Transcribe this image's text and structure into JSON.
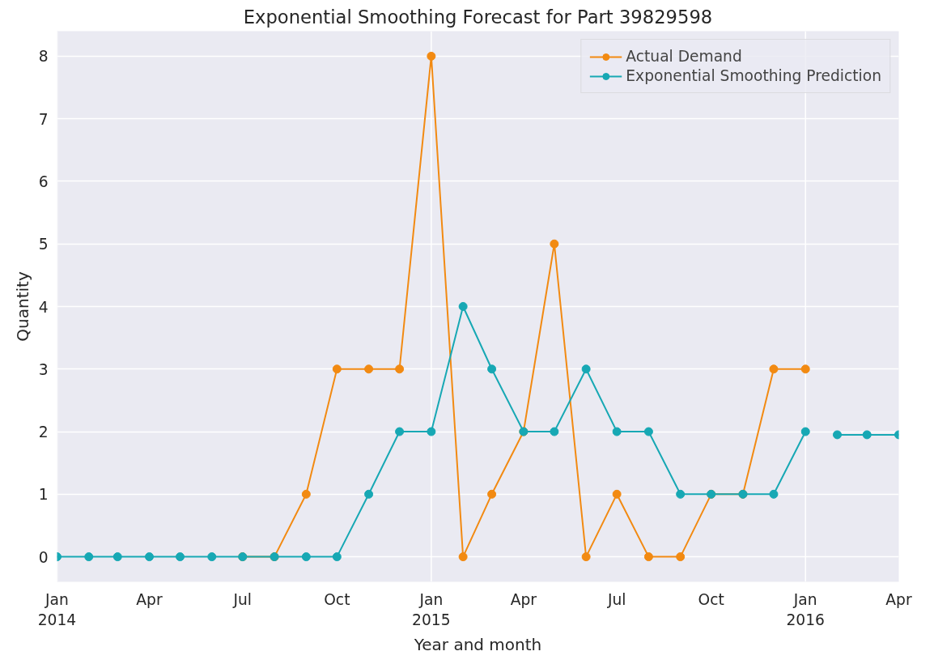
{
  "chart_data": {
    "type": "line",
    "title": "Exponential Smoothing Forecast for Part 39829598",
    "xlabel": "Year and month",
    "ylabel": "Quantity",
    "xlim": [
      "2014-01",
      "2016-04"
    ],
    "xticks": [
      {
        "value": "2014-01",
        "label": "Jan\n2014"
      },
      {
        "value": "2014-04",
        "label": "Apr"
      },
      {
        "value": "2014-07",
        "label": "Jul"
      },
      {
        "value": "2014-10",
        "label": "Oct"
      },
      {
        "value": "2015-01",
        "label": "Jan\n2015"
      },
      {
        "value": "2015-04",
        "label": "Apr"
      },
      {
        "value": "2015-07",
        "label": "Jul"
      },
      {
        "value": "2015-10",
        "label": "Oct"
      },
      {
        "value": "2016-01",
        "label": "Jan\n2016"
      },
      {
        "value": "2016-04",
        "label": "Apr"
      }
    ],
    "ylim": [
      -0.4,
      8.4
    ],
    "yticks": [
      0,
      1,
      2,
      3,
      4,
      5,
      6,
      7,
      8
    ],
    "grid": true,
    "legend": "top right",
    "marker": "circle",
    "line_style": "solid",
    "series": [
      {
        "name": "Actual Demand",
        "color": "#f28a12",
        "x": [
          "2014-07",
          "2014-08",
          "2014-09",
          "2014-10",
          "2014-11",
          "2014-12",
          "2015-01",
          "2015-02",
          "2015-03",
          "2015-04",
          "2015-05",
          "2015-06",
          "2015-07",
          "2015-08",
          "2015-09",
          "2015-10",
          "2015-11",
          "2015-12",
          "2016-01"
        ],
        "values": [
          0,
          0,
          1,
          3,
          3,
          3,
          8,
          0,
          1,
          2,
          5,
          0,
          1,
          0,
          0,
          1,
          1,
          3,
          3
        ]
      },
      {
        "name": "Exponential Smoothing Prediction",
        "color": "#17a8b4",
        "x": [
          "2014-01",
          "2014-02",
          "2014-03",
          "2014-04",
          "2014-05",
          "2014-06",
          "2014-07",
          "2014-08",
          "2014-09",
          "2014-10",
          "2014-11",
          "2014-12",
          "2015-01",
          "2015-02",
          "2015-03",
          "2015-04",
          "2015-05",
          "2015-06",
          "2015-07",
          "2015-08",
          "2015-09",
          "2015-10",
          "2015-11",
          "2015-12",
          "2016-01"
        ],
        "values": [
          0,
          0,
          0,
          0,
          0,
          0,
          0,
          0,
          0,
          0,
          1,
          2,
          2,
          4,
          3,
          2,
          2,
          3,
          2,
          2,
          1,
          1,
          1,
          1,
          2
        ]
      },
      {
        "color": "#17a8b4",
        "x": [
          "2016-02",
          "2016-03",
          "2016-04"
        ],
        "values": [
          1.95,
          1.95,
          1.95
        ]
      }
    ]
  }
}
